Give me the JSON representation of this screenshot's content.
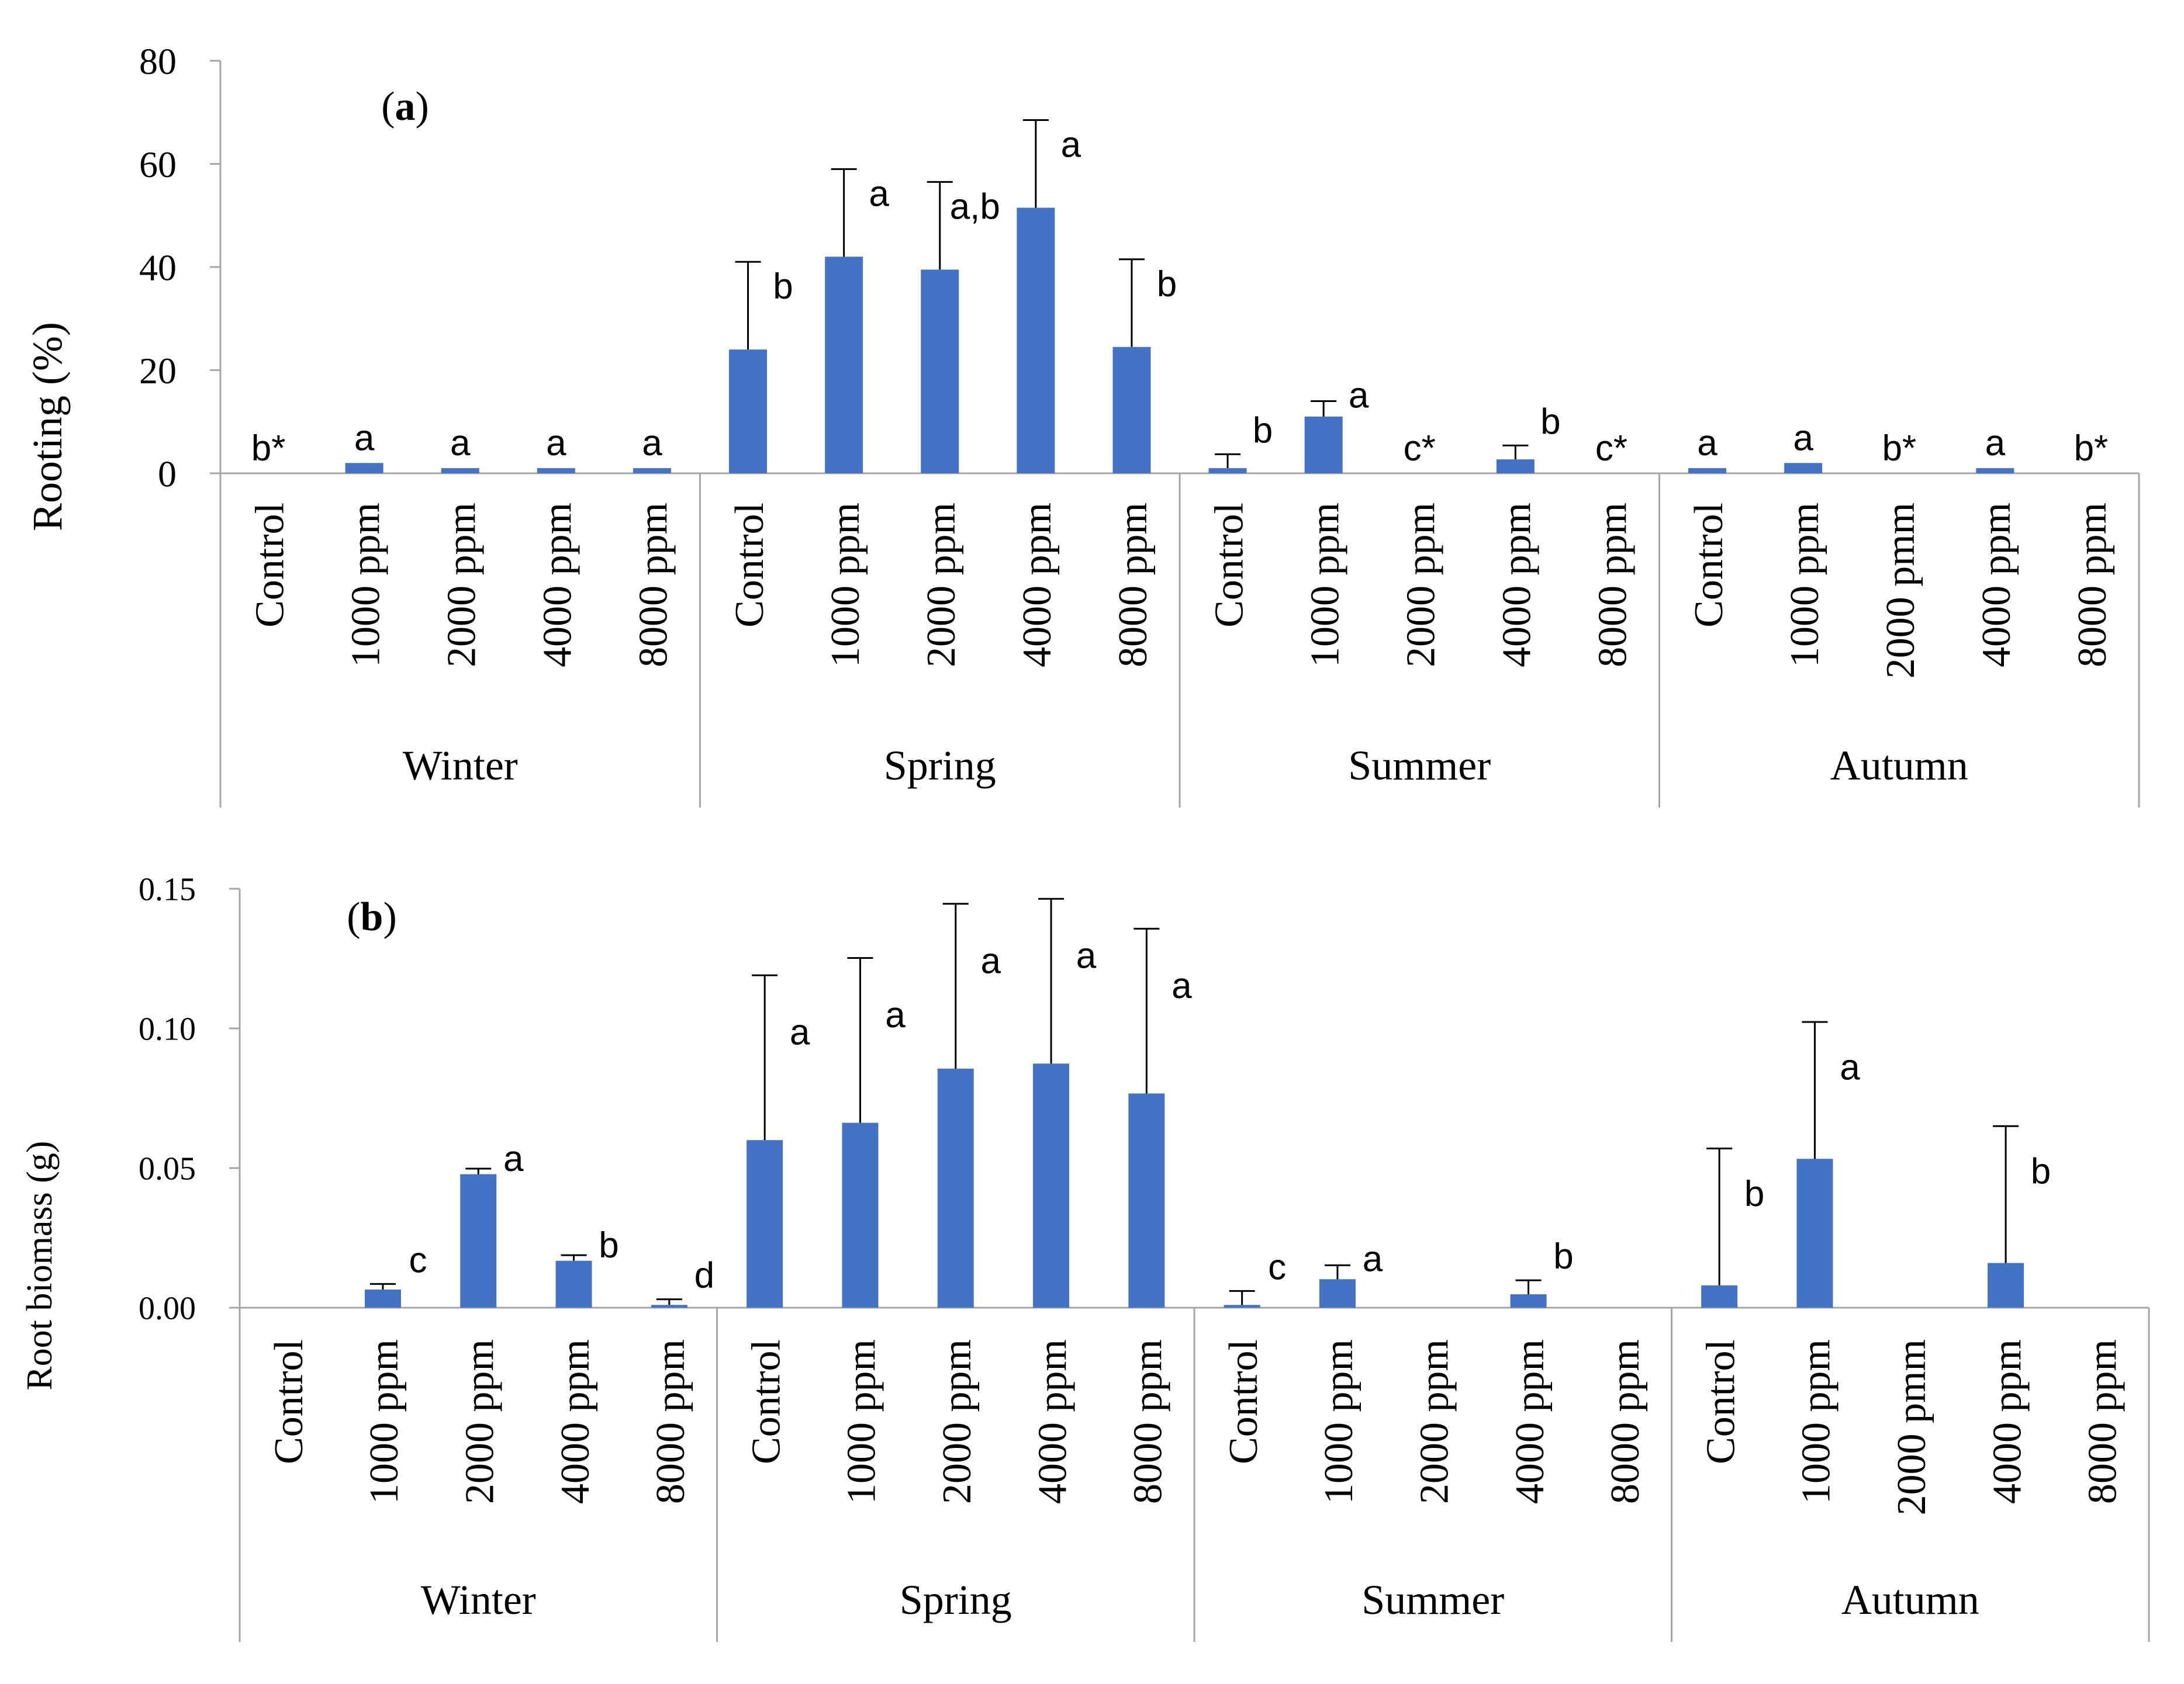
{
  "colors": {
    "bar": "#4472C4",
    "axis": "#A6A6A6",
    "text": "#000000",
    "error": "#000000"
  },
  "chart_data": [
    {
      "type": "bar",
      "panel_label": "a",
      "title": "",
      "xlabel": "",
      "ylabel": "Rooting (%)",
      "ylim": [
        0,
        80
      ],
      "yticks": [
        "0",
        "20",
        "40",
        "60",
        "80"
      ],
      "groups": [
        "Winter",
        "Spring",
        "Summer",
        "Autumn"
      ],
      "categories": [
        "Control",
        "1000 ppm",
        "2000 ppm",
        "4000 ppm",
        "8000 ppm",
        "Control",
        "1000 ppm",
        "2000 ppm",
        "4000 ppm",
        "8000 ppm",
        "Control",
        "1000 ppm",
        "2000 ppm",
        "4000 ppm",
        "8000 ppm",
        "Control",
        "1000 ppm",
        "2000 pmm",
        "4000 ppm",
        "8000 ppm"
      ],
      "values": [
        0,
        2,
        1,
        1,
        1,
        24,
        42,
        39.5,
        51.5,
        24.5,
        1,
        11,
        0,
        2.7,
        0,
        1,
        2,
        0,
        1,
        0
      ],
      "error": [
        0,
        0,
        0,
        0,
        0,
        17,
        17,
        17,
        17,
        17,
        2.7,
        3,
        0,
        2.7,
        0,
        0,
        0,
        0,
        0,
        0
      ],
      "letters": [
        "b*",
        "a",
        "a",
        "a",
        "a",
        "b",
        "a",
        "a,b",
        "a",
        "b",
        "b",
        "a",
        "c*",
        "b",
        "c*",
        "a",
        "a",
        "b*",
        "a",
        "b*"
      ]
    },
    {
      "type": "bar",
      "panel_label": "b",
      "title": "",
      "xlabel": "",
      "ylabel": "Root biomass (g)",
      "ylim": [
        0,
        0.15
      ],
      "yticks": [
        "0.00",
        "0.05",
        "0.10",
        "0.15"
      ],
      "groups": [
        "Winter",
        "Spring",
        "Summer",
        "Autumn"
      ],
      "categories": [
        "Control",
        "1000 ppm",
        "2000 ppm",
        "4000 ppm",
        "8000 ppm",
        "Control",
        "1000 ppm",
        "2000 ppm",
        "4000 ppm",
        "8000 ppm",
        "Control",
        "1000 ppm",
        "2000 ppm",
        "4000 ppm",
        "8000 ppm",
        "Control",
        "1000 ppm",
        "2000 pmm",
        "4000 ppm",
        "8000 ppm"
      ],
      "values": [
        0,
        0.0065,
        0.0478,
        0.0168,
        0.001,
        0.06,
        0.0662,
        0.0856,
        0.0874,
        0.0767,
        0.001,
        0.0102,
        0,
        0.0048,
        0,
        0.008,
        0.0533,
        0,
        0.016,
        0
      ],
      "error": [
        0,
        0.002,
        0.002,
        0.002,
        0.002,
        0.059,
        0.059,
        0.059,
        0.059,
        0.059,
        0.005,
        0.005,
        0,
        0.005,
        0,
        0.049,
        0.049,
        0,
        0.049,
        0
      ],
      "letters": [
        "",
        "c",
        "a",
        "b",
        "d",
        "a",
        "a",
        "a",
        "a",
        "a",
        "c",
        "a",
        "",
        "b",
        "",
        "b",
        "a",
        "",
        "b",
        ""
      ]
    }
  ]
}
